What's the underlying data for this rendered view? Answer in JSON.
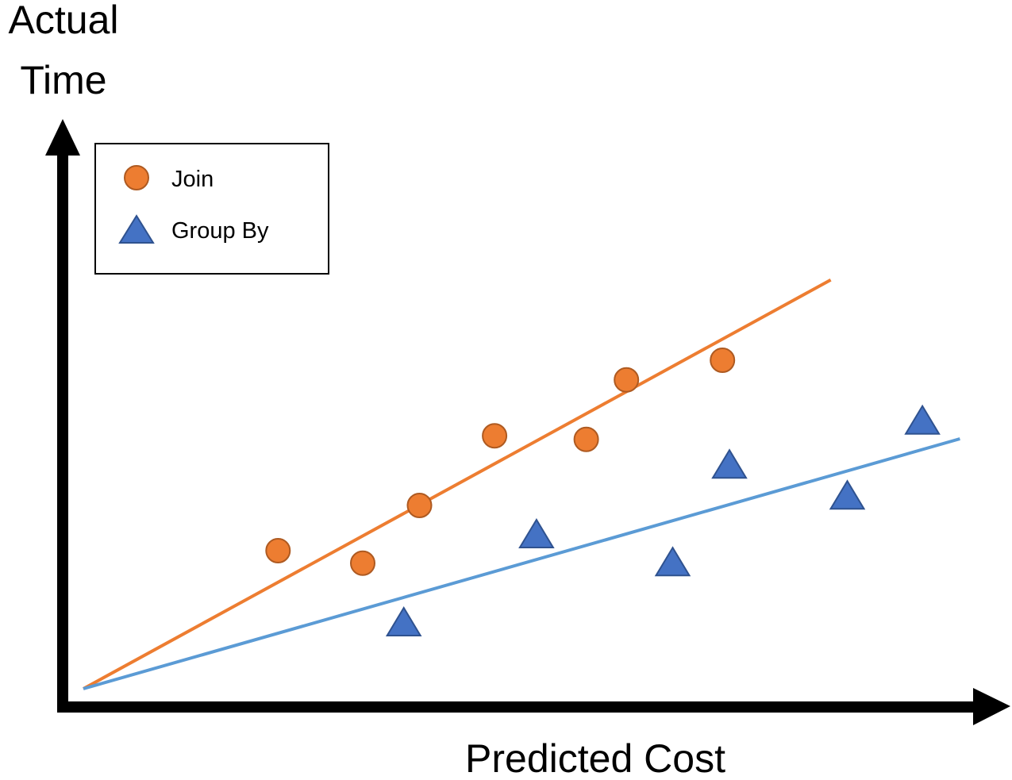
{
  "chart_data": {
    "type": "scatter",
    "title": "",
    "ylabel_lines": [
      "Actual",
      "Time"
    ],
    "xlabel": "Predicted Cost",
    "xlim": [
      0,
      100
    ],
    "ylim": [
      0,
      100
    ],
    "grid": false,
    "ticks": false,
    "legend_position": "top-left",
    "series": [
      {
        "name": "Join",
        "marker": "circle",
        "color": "#ED7D31",
        "edge_color": "#AE5A21",
        "trend_color": "#ED7D31",
        "points": [
          [
            22.3,
            23.2
          ],
          [
            32.0,
            21.1
          ],
          [
            38.5,
            30.8
          ],
          [
            47.1,
            42.5
          ],
          [
            57.6,
            41.9
          ],
          [
            62.2,
            51.9
          ],
          [
            73.2,
            55.2
          ]
        ],
        "trendline": [
          [
            0,
            0
          ],
          [
            85.6,
            68.7
          ]
        ]
      },
      {
        "name": "Group By",
        "marker": "triangle",
        "color": "#4472C4",
        "edge_color": "#2F528F",
        "trend_color": "#5B9BD5",
        "points": [
          [
            36.7,
            10.8
          ],
          [
            51.9,
            25.6
          ],
          [
            67.5,
            20.9
          ],
          [
            74.0,
            37.3
          ],
          [
            87.5,
            32.1
          ],
          [
            96.1,
            44.7
          ]
        ],
        "trendline": [
          [
            0,
            0
          ],
          [
            100.4,
            42.0
          ]
        ]
      }
    ]
  }
}
